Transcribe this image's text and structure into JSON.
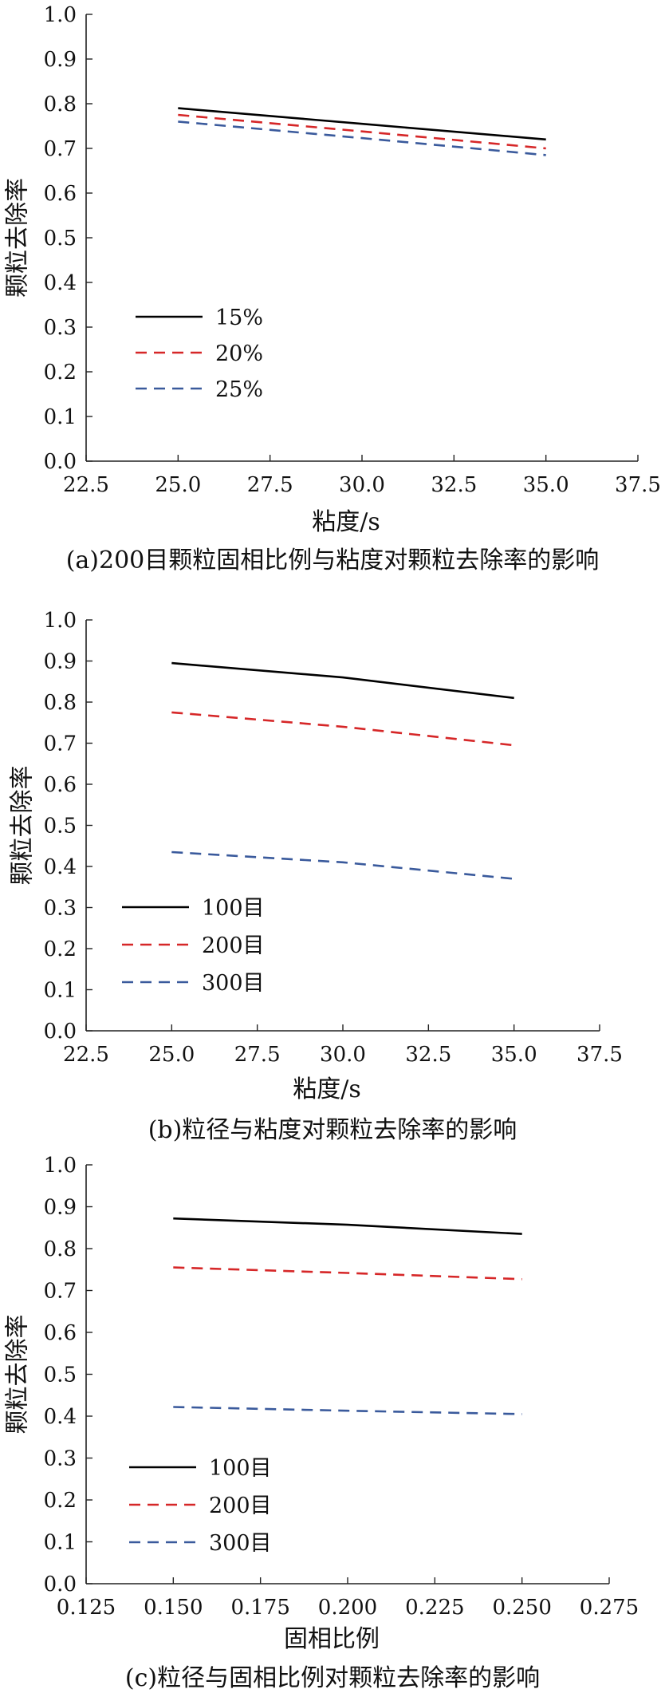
{
  "chart_data": [
    {
      "type": "line",
      "xlabel": "粘度/s",
      "ylabel": "颗粒去除率",
      "caption": "(a)200目颗粒固相比例与粘度对颗粒去除率的影响",
      "xlim": [
        22.5,
        37.5
      ],
      "ylim": [
        0.0,
        1.0
      ],
      "xticks": [
        "22.5",
        "25.0",
        "27.5",
        "30.0",
        "32.5",
        "35.0",
        "37.5"
      ],
      "yticks": [
        "0.0",
        "0.1",
        "0.2",
        "0.3",
        "0.4",
        "0.5",
        "0.6",
        "0.7",
        "0.8",
        "0.9",
        "1.0"
      ],
      "legend_position": "lower-left",
      "series": [
        {
          "name": "15%",
          "color": "#000000",
          "dash": "solid",
          "x": [
            25.0,
            30.0,
            35.0
          ],
          "y": [
            0.79,
            0.755,
            0.72
          ]
        },
        {
          "name": "20%",
          "color": "#d62728",
          "dash": "dashed",
          "x": [
            25.0,
            30.0,
            35.0
          ],
          "y": [
            0.775,
            0.738,
            0.7
          ]
        },
        {
          "name": "25%",
          "color": "#3a5a9c",
          "dash": "dashed",
          "x": [
            25.0,
            30.0,
            35.0
          ],
          "y": [
            0.76,
            0.723,
            0.685
          ]
        }
      ]
    },
    {
      "type": "line",
      "xlabel": "粘度/s",
      "ylabel": "颗粒去除率",
      "caption": "(b)粒径与粘度对颗粒去除率的影响",
      "xlim": [
        22.5,
        37.5
      ],
      "ylim": [
        0.0,
        1.0
      ],
      "xticks": [
        "22.5",
        "25.0",
        "27.5",
        "30.0",
        "32.5",
        "35.0",
        "37.5"
      ],
      "yticks": [
        "0.0",
        "0.1",
        "0.2",
        "0.3",
        "0.4",
        "0.5",
        "0.6",
        "0.7",
        "0.8",
        "0.9",
        "1.0"
      ],
      "legend_position": "lower-left",
      "series": [
        {
          "name": "100目",
          "color": "#000000",
          "dash": "solid",
          "x": [
            25.0,
            30.0,
            35.0
          ],
          "y": [
            0.895,
            0.86,
            0.81
          ]
        },
        {
          "name": "200目",
          "color": "#d62728",
          "dash": "dashed",
          "x": [
            25.0,
            30.0,
            35.0
          ],
          "y": [
            0.775,
            0.74,
            0.695
          ]
        },
        {
          "name": "300目",
          "color": "#3a5a9c",
          "dash": "dashed",
          "x": [
            25.0,
            30.0,
            35.0
          ],
          "y": [
            0.435,
            0.41,
            0.37
          ]
        }
      ]
    },
    {
      "type": "line",
      "xlabel": "固相比例",
      "ylabel": "颗粒去除率",
      "caption": "(c)粒径与固相比例对颗粒去除率的影响",
      "xlim": [
        0.125,
        0.275
      ],
      "ylim": [
        0.0,
        1.0
      ],
      "xticks": [
        "0.125",
        "0.150",
        "0.175",
        "0.200",
        "0.225",
        "0.250",
        "0.275"
      ],
      "yticks": [
        "0.0",
        "0.1",
        "0.2",
        "0.3",
        "0.4",
        "0.5",
        "0.6",
        "0.7",
        "0.8",
        "0.9",
        "1.0"
      ],
      "legend_position": "lower-left",
      "series": [
        {
          "name": "100目",
          "color": "#000000",
          "dash": "solid",
          "x": [
            0.15,
            0.2,
            0.25
          ],
          "y": [
            0.872,
            0.857,
            0.835
          ]
        },
        {
          "name": "200目",
          "color": "#d62728",
          "dash": "dashed",
          "x": [
            0.15,
            0.2,
            0.25
          ],
          "y": [
            0.755,
            0.742,
            0.727
          ]
        },
        {
          "name": "300目",
          "color": "#3a5a9c",
          "dash": "dashed",
          "x": [
            0.15,
            0.2,
            0.25
          ],
          "y": [
            0.422,
            0.413,
            0.405
          ]
        }
      ]
    }
  ]
}
